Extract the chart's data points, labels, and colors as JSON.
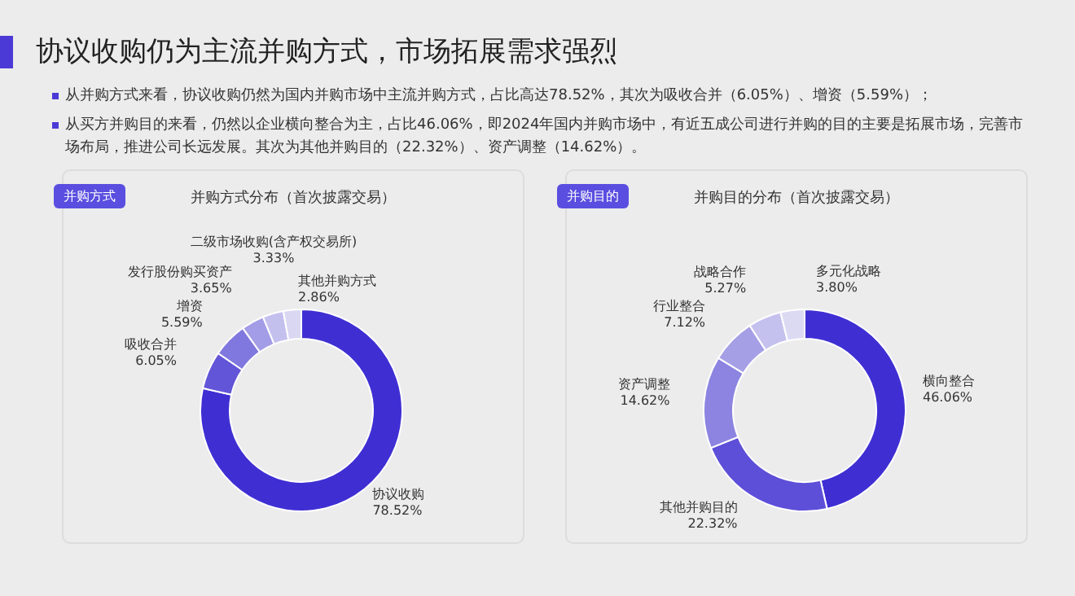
{
  "chart_data": [
    {
      "type": "other",
      "title": "协议收购仍为主流并购方式，市场拓展需求强烈",
      "annotations": [
        "从并购方式来看，协议收购仍然为国内并购市场中主流并购方式，占比高达78.52%，其次为吸收合并（6.05%）、增资（5.59%）；",
        "从买方并购目的来看，仍然以企业横向整合为主，占比46.06%，即2024年国内并购市场中，有近五成公司进行并购的目的主要是拓展市场，完善市场布局，推进公司长远发展。其次为其他并购目的（22.32%）、资产调整（14.62%）。"
      ]
    },
    {
      "type": "donut",
      "title": "并购方式分布（首次披露交易）",
      "annotations": [
        "并购方式"
      ],
      "categories": [
        "协议收购",
        "吸收合并",
        "增资",
        "发行股份购买资产",
        "二级市场收购(含产权交易所)",
        "其他并购方式"
      ],
      "values": [
        78.52,
        6.05,
        5.59,
        3.65,
        3.33,
        2.86
      ],
      "value_labels": [
        "78.52%",
        "6.05%",
        "5.59%",
        "3.65%",
        "3.33%",
        "2.86%"
      ],
      "colors": [
        "#3f2fd3",
        "#6355d8",
        "#8078de",
        "#a39ce6",
        "#c4c0ee",
        "#d9d7f2"
      ],
      "legend": false
    },
    {
      "type": "donut",
      "title": "并购目的分布（首次披露交易）",
      "annotations": [
        "并购目的"
      ],
      "categories": [
        "横向整合",
        "其他并购目的",
        "资产调整",
        "行业整合",
        "战略合作",
        "多元化战略"
      ],
      "values": [
        46.06,
        22.32,
        14.62,
        7.12,
        5.27,
        3.8
      ],
      "value_labels": [
        "46.06%",
        "22.32%",
        "14.62%",
        "7.12%",
        "5.27%",
        "3.80%"
      ],
      "colors": [
        "#3f2fd3",
        "#5d4fd8",
        "#8c84e0",
        "#a59fe6",
        "#c5c1ee",
        "#dcdaf3"
      ],
      "legend": false
    }
  ]
}
